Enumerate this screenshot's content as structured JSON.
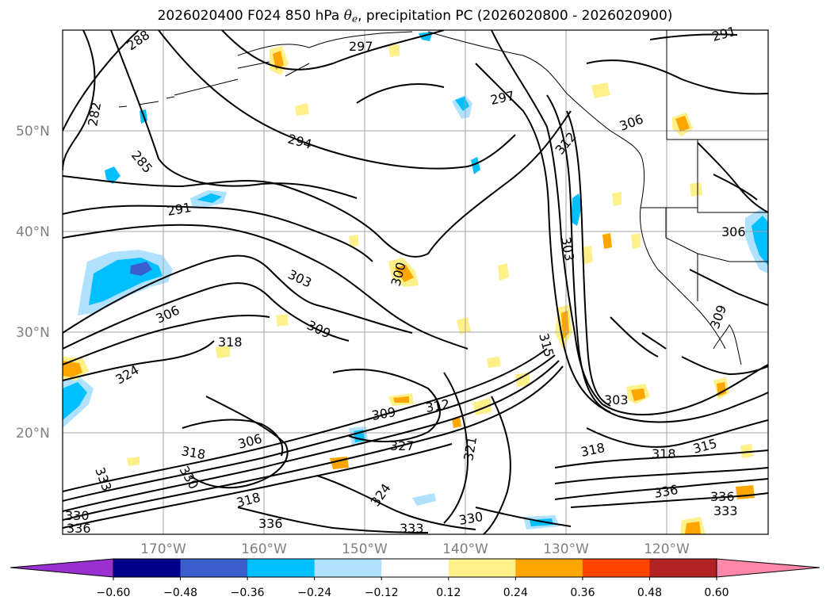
{
  "title": {
    "prefix": "2026020400 F024 850 hPa ",
    "theta_symbol": "θ",
    "theta_subscript": "e",
    "suffix": ", precipitation PC (2026020800 - 2026020900)"
  },
  "map": {
    "lat_labels": [
      "50°N",
      "40°N",
      "30°N",
      "20°N"
    ],
    "lon_labels": [
      "170°W",
      "160°W",
      "150°W",
      "140°W",
      "130°W",
      "120°W"
    ],
    "gridlines": true,
    "contour_color": "#000000",
    "coastline_color": "#000000"
  },
  "contour_labels": [
    "288",
    "297",
    "291",
    "297",
    "282",
    "294",
    "306",
    "285",
    "312",
    "291",
    "300",
    "306",
    "303",
    "303",
    "306",
    "309",
    "318",
    "324",
    "315",
    "303",
    "312",
    "309",
    "327",
    "321",
    "318",
    "318",
    "315",
    "306",
    "318",
    "324",
    "330",
    "333",
    "336",
    "336",
    "333",
    "330",
    "336",
    "333",
    "330",
    "336",
    "318",
    "309"
  ],
  "colorbar": {
    "ticks": [
      "−0.60",
      "−0.48",
      "−0.36",
      "−0.24",
      "−0.12",
      "0.12",
      "0.24",
      "0.36",
      "0.48",
      "0.60"
    ],
    "colors": [
      "#9b30d0",
      "#00008b",
      "#3a5fcd",
      "#00bfff",
      "#b0e2ff",
      "#ffffff",
      "#fff08a",
      "#ffa500",
      "#ff4500",
      "#b22222",
      "#ff88aa"
    ]
  }
}
